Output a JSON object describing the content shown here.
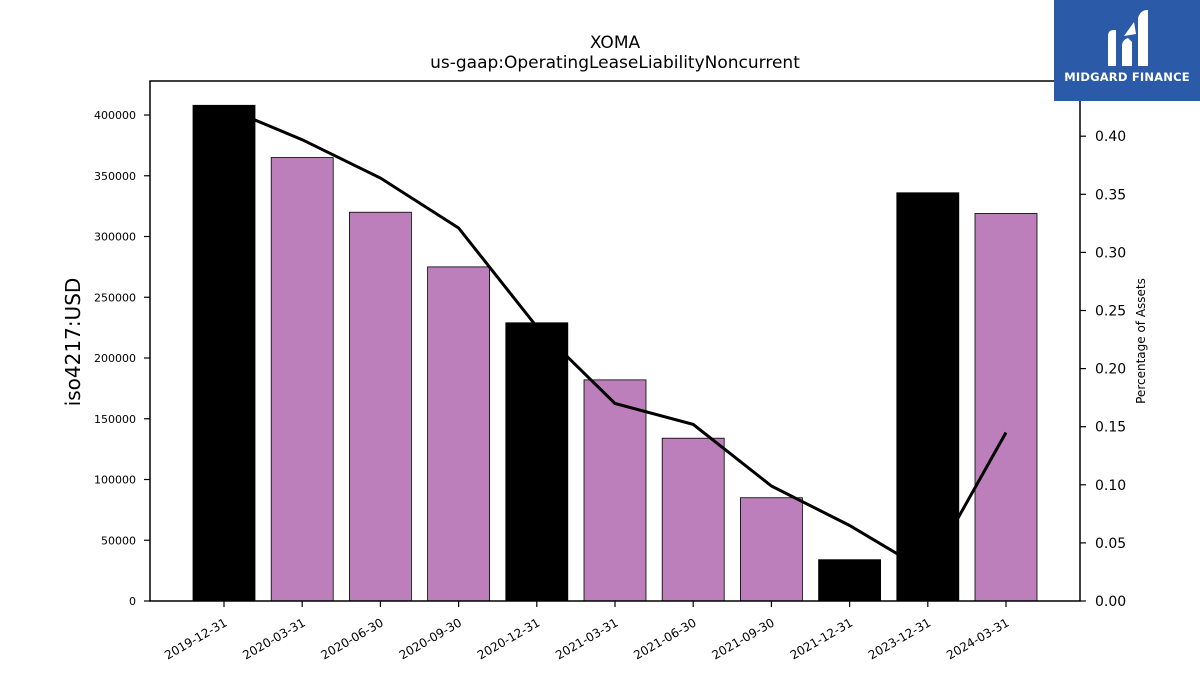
{
  "logo": {
    "text": "MIDGARD FINANCE",
    "icon": "midgard-logo-icon",
    "bg_color": "#2a5aa8"
  },
  "chart_data": {
    "type": "bar",
    "title": "XOMA",
    "subtitle": "us-gaap:OperatingLeaseLiabilityNoncurrent",
    "ylabel": "iso4217:USD",
    "y2label": "Percentage of Assets",
    "categories": [
      "2019-12-31",
      "2020-03-31",
      "2020-06-30",
      "2020-09-30",
      "2020-12-31",
      "2021-03-31",
      "2021-06-30",
      "2021-09-30",
      "2021-12-31",
      "2023-12-31",
      "2024-03-31"
    ],
    "series": [
      {
        "type": "bar",
        "values": [
          408000,
          365000,
          320000,
          275000,
          229000,
          182000,
          134000,
          85000,
          34000,
          336000,
          319000
        ],
        "colors": [
          "#000000",
          "#bc7fbc",
          "#bc7fbc",
          "#bc7fbc",
          "#000000",
          "#bc7fbc",
          "#bc7fbc",
          "#bc7fbc",
          "#000000",
          "#000000",
          "#bc7fbc"
        ]
      },
      {
        "type": "line",
        "axis": "right",
        "values": [
          0.425,
          0.397,
          0.364,
          0.321,
          0.236,
          0.17,
          0.152,
          0.099,
          0.065,
          0.025,
          0.145
        ]
      }
    ],
    "line_color": "#000000",
    "ylim": [
      0,
      428000
    ],
    "y2lim": [
      0,
      0.4475
    ],
    "yticks": [
      0,
      50000,
      100000,
      150000,
      200000,
      250000,
      300000,
      350000,
      400000
    ],
    "y2ticks": [
      "0.00",
      "0.05",
      "0.10",
      "0.15",
      "0.20",
      "0.25",
      "0.30",
      "0.35",
      "0.40"
    ],
    "grid": false,
    "legend": "none"
  }
}
